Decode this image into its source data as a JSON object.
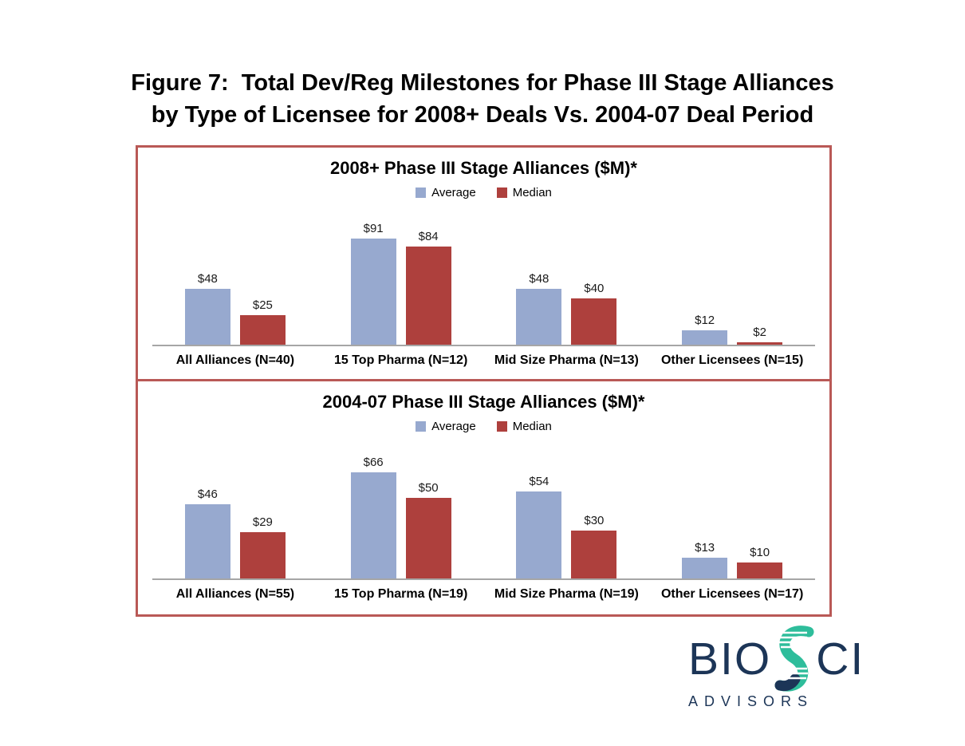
{
  "page": {
    "title_line1": "Figure 7:  Total Dev/Reg Milestones for Phase III Stage Alliances",
    "title_line2": "by Type of Licensee for 2008+ Deals Vs. 2004-07 Deal Period"
  },
  "colors": {
    "average": "#97a9cf",
    "median": "#ae403d",
    "panel_border": "#b95956",
    "axis_line": "#a6a6a6",
    "logo_navy": "#1c3557",
    "logo_teal": "#2ebd9b"
  },
  "chart_data": [
    {
      "type": "bar",
      "title": "2008+ Phase III Stage Alliances ($M)*",
      "categories": [
        "All Alliances (N=40)",
        "15 Top Pharma (N=12)",
        "Mid Size Pharma (N=13)",
        "Other Licensees (N=15)"
      ],
      "series": [
        {
          "name": "Average",
          "values": [
            48,
            91,
            48,
            12
          ],
          "labels": [
            "$48",
            "$91",
            "$48",
            "$12"
          ]
        },
        {
          "name": "Median",
          "values": [
            25,
            84,
            40,
            2
          ],
          "labels": [
            "$25",
            "$84",
            "$40",
            "$2"
          ]
        }
      ],
      "ylim": [
        0,
        100
      ],
      "legend_position": "top",
      "grid": false,
      "legend": {
        "average_label": "Average",
        "median_label": "Median"
      }
    },
    {
      "type": "bar",
      "title": "2004-07 Phase III Stage Alliances ($M)*",
      "categories": [
        "All Alliances (N=55)",
        "15 Top Pharma (N=19)",
        "Mid Size Pharma (N=19)",
        "Other Licensees (N=17)"
      ],
      "series": [
        {
          "name": "Average",
          "values": [
            46,
            66,
            54,
            13
          ],
          "labels": [
            "$46",
            "$66",
            "$54",
            "$13"
          ]
        },
        {
          "name": "Median",
          "values": [
            29,
            50,
            30,
            10
          ],
          "labels": [
            "$29",
            "$50",
            "$30",
            "$10"
          ]
        }
      ],
      "ylim": [
        0,
        70
      ],
      "legend_position": "top",
      "grid": false,
      "legend": {
        "average_label": "Average",
        "median_label": "Median"
      }
    }
  ],
  "logo": {
    "text_bio": "BIO",
    "text_ci": "CI",
    "subtext": "ADVISORS",
    "icon": "dna-helix-icon"
  }
}
